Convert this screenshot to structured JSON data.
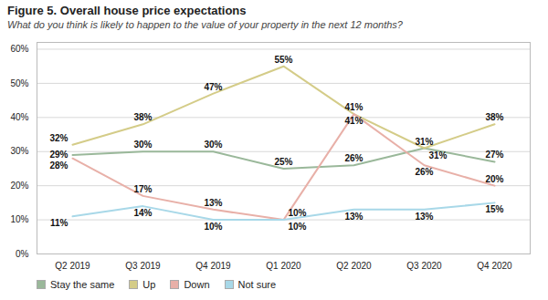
{
  "chart_data": {
    "type": "line",
    "title": "Figure 5. Overall house price expectations",
    "subtitle": "What do you think is likely to happen to the value of your property in the next 12 months?",
    "categories": [
      "Q2 2019",
      "Q3 2019",
      "Q4 2019",
      "Q1 2020",
      "Q2 2020",
      "Q3 2020",
      "Q4 2020"
    ],
    "series": [
      {
        "name": "Stay the same",
        "color": "#9ab89a",
        "values": [
          29,
          30,
          30,
          25,
          26,
          31,
          27
        ],
        "value_labels": [
          "29%",
          "30%",
          "30%",
          "25%",
          "26%",
          "31%",
          "27%"
        ]
      },
      {
        "name": "Up",
        "color": "#d4cc88",
        "values": [
          32,
          38,
          47,
          55,
          41,
          31,
          38
        ],
        "value_labels": [
          "32%",
          "38%",
          "47%",
          "55%",
          "41%",
          "31%",
          "38%"
        ]
      },
      {
        "name": "Down",
        "color": "#e8b0a8",
        "values": [
          28,
          17,
          13,
          10,
          41,
          26,
          20
        ],
        "value_labels": [
          "28%",
          "17%",
          "13%",
          "10%",
          "41%",
          "26%",
          "20%"
        ]
      },
      {
        "name": "Not sure",
        "color": "#a8d8e8",
        "values": [
          11,
          14,
          10,
          10,
          13,
          13,
          15
        ],
        "value_labels": [
          "11%",
          "14%",
          "10%",
          "10%",
          "13%",
          "13%",
          "15%"
        ]
      }
    ],
    "ylim": [
      0,
      62
    ],
    "yticks": [
      {
        "value": 0,
        "label": "0%"
      },
      {
        "value": 10,
        "label": "10%"
      },
      {
        "value": 20,
        "label": "20%"
      },
      {
        "value": 30,
        "label": "30%"
      },
      {
        "value": 40,
        "label": "40%"
      },
      {
        "value": 50,
        "label": "50%"
      },
      {
        "value": 60,
        "label": "60%"
      }
    ],
    "grid": true,
    "data_labels": true,
    "legend": "bottom"
  }
}
